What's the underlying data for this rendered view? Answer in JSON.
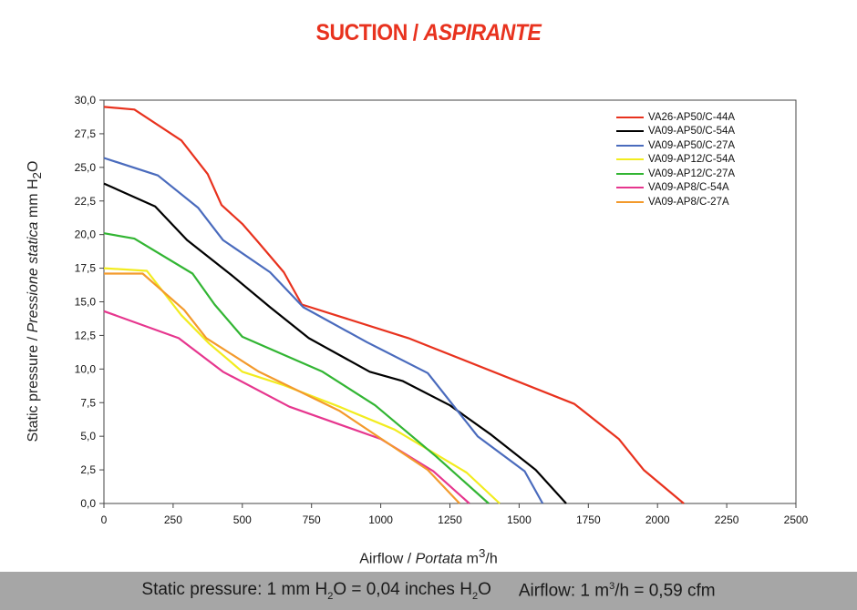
{
  "title": {
    "main": "SUCTION /",
    "italic": "ASPIRANTE"
  },
  "footer": {
    "pressure_pre": "Static pressure: 1 mm H",
    "pressure_sub1": "2",
    "pressure_mid": "O = 0,04 inches H",
    "pressure_sub2": "2",
    "pressure_end": "O",
    "airflow_pre": "Airflow: 1 m",
    "airflow_sup": "3",
    "airflow_end": "/h = 0,59 cfm"
  },
  "axis_labels": {
    "x_pre": "Airflow /",
    "x_italic": "Portata",
    "x_unit_pre": "m",
    "x_unit_sup": "3",
    "x_unit_end": "/h",
    "y_pre": "Static pressure /",
    "y_italic": "Pressione statica",
    "y_unit_pre": "mm  H",
    "y_unit_sub": "2",
    "y_unit_end": "O"
  },
  "chart_data": {
    "type": "line",
    "xlim": [
      0,
      2500
    ],
    "ylim": [
      0,
      30
    ],
    "x_ticks": [
      "0",
      "250",
      "500",
      "750",
      "1000",
      "1250",
      "1500",
      "1750",
      "2000",
      "2250",
      "2500"
    ],
    "y_ticks": [
      "0,0",
      "2,5",
      "5,0",
      "7,5",
      "10,0",
      "12,5",
      "15,0",
      "17,5",
      "20,0",
      "22,5",
      "25,0",
      "27,5",
      "30,0"
    ],
    "grid": false,
    "legend_position": "top-right",
    "series": [
      {
        "name": "VA26-AP50/C-44A",
        "color": "#e8321e",
        "points": [
          [
            0,
            29.5
          ],
          [
            110,
            29.3
          ],
          [
            280,
            27.0
          ],
          [
            375,
            24.5
          ],
          [
            425,
            22.2
          ],
          [
            500,
            20.8
          ],
          [
            555,
            19.5
          ],
          [
            650,
            17.2
          ],
          [
            715,
            14.8
          ],
          [
            1100,
            12.3
          ],
          [
            1700,
            7.4
          ],
          [
            1860,
            4.8
          ],
          [
            1950,
            2.5
          ],
          [
            2095,
            0
          ]
        ]
      },
      {
        "name": "VA09-AP50/C-54A",
        "color": "#000000",
        "points": [
          [
            0,
            23.8
          ],
          [
            185,
            22.1
          ],
          [
            300,
            19.6
          ],
          [
            460,
            17.0
          ],
          [
            600,
            14.6
          ],
          [
            740,
            12.3
          ],
          [
            960,
            9.8
          ],
          [
            1080,
            9.1
          ],
          [
            1250,
            7.3
          ],
          [
            1400,
            5.1
          ],
          [
            1560,
            2.5
          ],
          [
            1670,
            0
          ]
        ]
      },
      {
        "name": "VA09-AP50/C-27A",
        "color": "#4a6bbd",
        "points": [
          [
            0,
            25.7
          ],
          [
            195,
            24.4
          ],
          [
            340,
            22.0
          ],
          [
            430,
            19.6
          ],
          [
            600,
            17.2
          ],
          [
            720,
            14.6
          ],
          [
            950,
            12.0
          ],
          [
            1170,
            9.7
          ],
          [
            1350,
            5.0
          ],
          [
            1520,
            2.4
          ],
          [
            1585,
            0
          ]
        ]
      },
      {
        "name": "VA09-AP12/C-54A",
        "color": "#f2ec1f",
        "points": [
          [
            0,
            17.5
          ],
          [
            155,
            17.3
          ],
          [
            280,
            14.0
          ],
          [
            380,
            11.9
          ],
          [
            500,
            9.8
          ],
          [
            650,
            8.8
          ],
          [
            850,
            7.2
          ],
          [
            1050,
            5.5
          ],
          [
            1310,
            2.3
          ],
          [
            1430,
            0
          ]
        ]
      },
      {
        "name": "VA09-AP12/C-27A",
        "color": "#32b533",
        "points": [
          [
            0,
            20.1
          ],
          [
            110,
            19.7
          ],
          [
            320,
            17.1
          ],
          [
            400,
            14.8
          ],
          [
            500,
            12.4
          ],
          [
            790,
            9.8
          ],
          [
            980,
            7.3
          ],
          [
            1200,
            3.5
          ],
          [
            1390,
            0
          ]
        ]
      },
      {
        "name": "VA09-AP8/C-54A",
        "color": "#e6368e",
        "points": [
          [
            0,
            14.3
          ],
          [
            270,
            12.3
          ],
          [
            430,
            9.8
          ],
          [
            670,
            7.2
          ],
          [
            1000,
            4.8
          ],
          [
            1190,
            2.4
          ],
          [
            1320,
            0
          ]
        ]
      },
      {
        "name": "VA09-AP8/C-27A",
        "color": "#f39a2c",
        "points": [
          [
            0,
            17.1
          ],
          [
            140,
            17.1
          ],
          [
            290,
            14.4
          ],
          [
            370,
            12.3
          ],
          [
            560,
            9.8
          ],
          [
            850,
            6.9
          ],
          [
            1170,
            2.5
          ],
          [
            1285,
            0
          ]
        ]
      }
    ]
  }
}
